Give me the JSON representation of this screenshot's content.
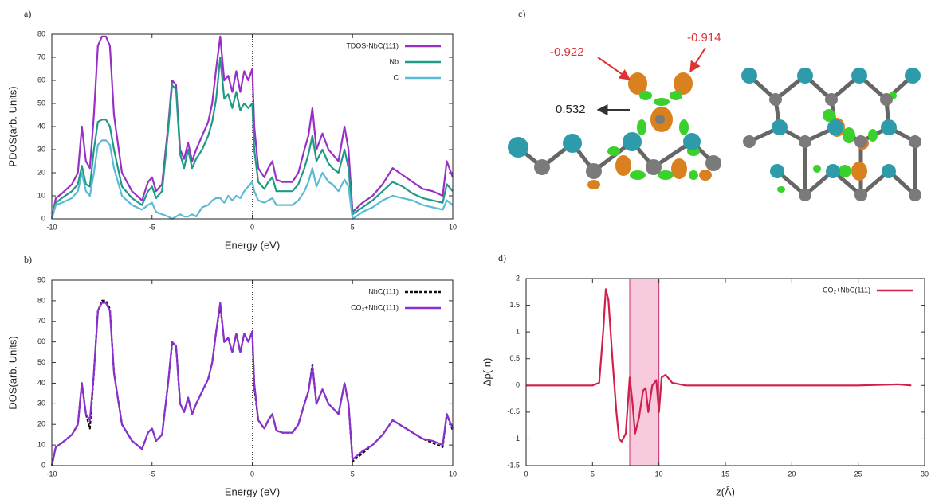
{
  "chart_data": [
    {
      "type": "line",
      "label": "a)",
      "xlabel": "Energy (eV)",
      "ylabel": "PDOS(arb. Units)",
      "xlim": [
        -10,
        10
      ],
      "xticks": [
        -10,
        -5,
        0,
        5,
        10
      ],
      "ylim": [
        0,
        80
      ],
      "yticks": [
        0,
        10,
        20,
        30,
        40,
        50,
        60,
        70,
        80
      ],
      "vline": 0,
      "legend": "upper right",
      "x": [
        -10,
        -9.8,
        -9.5,
        -9,
        -8.7,
        -8.5,
        -8.3,
        -8.1,
        -7.9,
        -7.7,
        -7.5,
        -7.3,
        -7.1,
        -6.9,
        -6.5,
        -6,
        -5.5,
        -5.2,
        -5,
        -4.8,
        -4.5,
        -4.2,
        -4,
        -3.8,
        -3.6,
        -3.4,
        -3.2,
        -3,
        -2.8,
        -2.5,
        -2.2,
        -2,
        -1.8,
        -1.6,
        -1.4,
        -1.2,
        -1,
        -0.8,
        -0.6,
        -0.4,
        -0.2,
        0,
        0.1,
        0.3,
        0.6,
        0.8,
        1,
        1.2,
        1.5,
        2,
        2.3,
        2.6,
        2.8,
        3,
        3.2,
        3.5,
        3.8,
        4,
        4.3,
        4.6,
        4.8,
        5,
        5.5,
        6,
        6.5,
        7,
        7.5,
        8,
        8.5,
        9,
        9.5,
        9.7,
        10
      ],
      "series": [
        {
          "name": "TDOS-NbC(111)",
          "color": "#9a2fc8",
          "style": "solid",
          "values": [
            0,
            9,
            11,
            15,
            20,
            40,
            25,
            22,
            45,
            75,
            79,
            79,
            75,
            45,
            20,
            12,
            8,
            16,
            18,
            12,
            15,
            40,
            60,
            58,
            30,
            26,
            33,
            25,
            30,
            36,
            42,
            50,
            65,
            79,
            60,
            62,
            55,
            64,
            55,
            64,
            60,
            65,
            40,
            22,
            18,
            22,
            25,
            17,
            16,
            16,
            20,
            30,
            36,
            48,
            30,
            37,
            30,
            28,
            25,
            40,
            30,
            3,
            7,
            10,
            15,
            22,
            19,
            16,
            13,
            12,
            10,
            25,
            18
          ]
        },
        {
          "name": "Nb",
          "color": "#1f9a86",
          "style": "solid",
          "values": [
            0,
            7,
            9,
            12,
            15,
            23,
            15,
            14,
            30,
            42,
            43,
            43,
            40,
            30,
            14,
            9,
            6,
            12,
            14,
            9,
            12,
            38,
            58,
            56,
            28,
            22,
            30,
            22,
            26,
            30,
            36,
            42,
            52,
            70,
            52,
            54,
            48,
            55,
            47,
            50,
            48,
            50,
            30,
            16,
            13,
            16,
            18,
            12,
            12,
            12,
            15,
            22,
            28,
            36,
            25,
            30,
            24,
            22,
            20,
            30,
            22,
            2,
            5,
            8,
            12,
            16,
            14,
            11,
            9,
            8,
            7,
            15,
            12
          ]
        },
        {
          "name": "C",
          "color": "#5bbad5",
          "style": "solid",
          "values": [
            0,
            6,
            7,
            9,
            12,
            20,
            12,
            10,
            20,
            32,
            34,
            34,
            32,
            22,
            10,
            6,
            4,
            6,
            7,
            3,
            2,
            1,
            0,
            1,
            2,
            1,
            1,
            2,
            1,
            5,
            6,
            8,
            9,
            9,
            7,
            10,
            8,
            10,
            9,
            12,
            14,
            16,
            12,
            8,
            7,
            8,
            9,
            6,
            6,
            6,
            8,
            12,
            16,
            22,
            14,
            20,
            16,
            15,
            12,
            17,
            14,
            0,
            3,
            5,
            8,
            10,
            9,
            8,
            6,
            5,
            4,
            8,
            6
          ]
        }
      ]
    },
    {
      "type": "line",
      "label": "b)",
      "xlabel": "Energy (eV)",
      "ylabel": "DOS(arb. Units)",
      "xlim": [
        -10,
        10
      ],
      "xticks": [
        -10,
        -5,
        0,
        5,
        10
      ],
      "ylim": [
        0,
        90
      ],
      "yticks": [
        0,
        10,
        20,
        30,
        40,
        50,
        60,
        70,
        80,
        90
      ],
      "vline": 0,
      "legend": "upper right",
      "x": [
        -10,
        -9.8,
        -9.5,
        -9,
        -8.7,
        -8.5,
        -8.3,
        -8.1,
        -7.9,
        -7.7,
        -7.5,
        -7.3,
        -7.1,
        -6.9,
        -6.5,
        -6,
        -5.5,
        -5.2,
        -5,
        -4.8,
        -4.5,
        -4.2,
        -4,
        -3.8,
        -3.6,
        -3.4,
        -3.2,
        -3,
        -2.8,
        -2.5,
        -2.2,
        -2,
        -1.8,
        -1.6,
        -1.4,
        -1.2,
        -1,
        -0.8,
        -0.6,
        -0.4,
        -0.2,
        0,
        0.1,
        0.3,
        0.6,
        0.8,
        1,
        1.2,
        1.5,
        2,
        2.3,
        2.6,
        2.8,
        3,
        3.2,
        3.5,
        3.8,
        4,
        4.3,
        4.6,
        4.8,
        5,
        5.5,
        6,
        6.5,
        7,
        7.5,
        8,
        8.5,
        9,
        9.5,
        9.7,
        10
      ],
      "series": [
        {
          "name": "NbC(111)",
          "color": "#111111",
          "style": "dashed",
          "values": [
            0,
            9,
            11,
            15,
            20,
            40,
            25,
            18,
            45,
            75,
            80,
            80,
            76,
            45,
            20,
            12,
            8,
            16,
            18,
            12,
            15,
            40,
            59,
            58,
            30,
            26,
            33,
            25,
            30,
            36,
            42,
            50,
            65,
            78,
            60,
            62,
            55,
            64,
            55,
            64,
            60,
            65,
            38,
            22,
            18,
            22,
            25,
            17,
            16,
            16,
            20,
            30,
            36,
            49,
            30,
            37,
            30,
            28,
            25,
            40,
            30,
            2,
            6,
            10,
            15,
            22,
            19,
            16,
            13,
            11,
            9,
            25,
            17
          ]
        },
        {
          "name": "CO₂+NbC(111)",
          "color": "#8a2fd0",
          "style": "solid",
          "values": [
            0,
            9,
            11,
            15,
            20,
            40,
            25,
            22,
            45,
            75,
            79,
            79,
            75,
            45,
            20,
            12,
            8,
            16,
            18,
            12,
            15,
            40,
            60,
            58,
            30,
            26,
            33,
            25,
            30,
            36,
            42,
            50,
            65,
            79,
            60,
            62,
            55,
            64,
            55,
            64,
            60,
            65,
            40,
            22,
            18,
            22,
            25,
            17,
            16,
            16,
            20,
            30,
            36,
            48,
            30,
            37,
            30,
            28,
            25,
            40,
            30,
            3,
            7,
            10,
            15,
            22,
            19,
            16,
            13,
            12,
            10,
            25,
            18
          ]
        }
      ]
    },
    {
      "type": "line",
      "label": "d)",
      "xlabel": "z(Å)",
      "ylabel": "Δρ( n)",
      "xlim": [
        0,
        30
      ],
      "xticks": [
        0,
        5,
        10,
        15,
        20,
        25,
        30
      ],
      "ylim": [
        -1.5,
        2
      ],
      "yticks": [
        -1.5,
        -1,
        -0.5,
        0,
        0.5,
        1,
        1.5,
        2
      ],
      "span": [
        7.8,
        10
      ],
      "span_color": "#f4a6c8",
      "legend": "upper right",
      "x": [
        0,
        2,
        4,
        5,
        5.5,
        5.8,
        6,
        6.2,
        6.5,
        6.8,
        7,
        7.2,
        7.5,
        7.8,
        8,
        8.2,
        8.5,
        8.8,
        9,
        9.2,
        9.5,
        9.8,
        10,
        10.2,
        10.5,
        11,
        12,
        15,
        20,
        25,
        28,
        29
      ],
      "series": [
        {
          "name": "CO₂+NbC(111)",
          "color": "#d0204a",
          "style": "solid",
          "values": [
            0,
            0,
            0,
            0,
            0.05,
            1,
            1.8,
            1.6,
            0.5,
            -0.5,
            -1,
            -1.05,
            -0.9,
            0.15,
            -0.3,
            -0.9,
            -0.6,
            -0.1,
            -0.05,
            -0.5,
            0,
            0.1,
            -0.5,
            0.15,
            0.2,
            0.05,
            0,
            0,
            0,
            0,
            0.02,
            0
          ]
        }
      ]
    }
  ],
  "image_panel": {
    "label": "c)",
    "annotations": [
      "-0.922",
      "-0.914",
      "0.532"
    ]
  }
}
